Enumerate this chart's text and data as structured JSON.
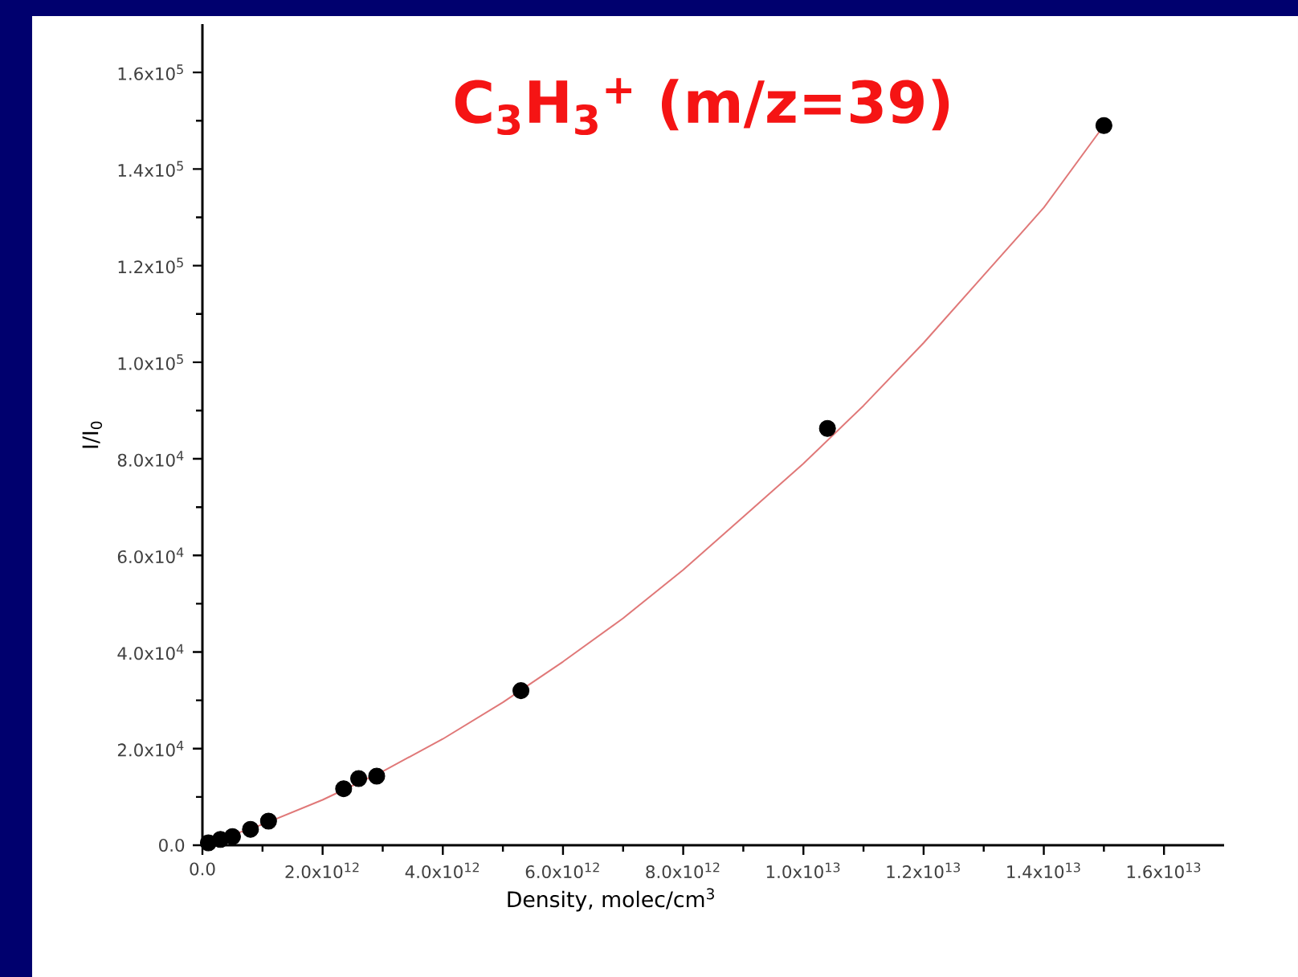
{
  "chart_data": {
    "type": "scatter",
    "title": "C$_{3}$H$_{3}$$^{+}$ (m/z=39)",
    "xlabel": "Density, molec/cm$^{3}$",
    "ylabel": "I/I$_{0}$",
    "xlim": [
      0,
      17000000000000.0
    ],
    "ylim": [
      0,
      170000
    ],
    "xticks": [
      {
        "value": 0,
        "label": "0.0"
      },
      {
        "value": 2000000000000.0,
        "label": "2.0x10$^{12}$"
      },
      {
        "value": 4000000000000.0,
        "label": "4.0x10$^{12}$"
      },
      {
        "value": 6000000000000.0,
        "label": "6.0x10$^{12}$"
      },
      {
        "value": 8000000000000.0,
        "label": "8.0x10$^{12}$"
      },
      {
        "value": 10000000000000.0,
        "label": "1.0x10$^{13}$"
      },
      {
        "value": 12000000000000.0,
        "label": "1.2x10$^{13}$"
      },
      {
        "value": 14000000000000.0,
        "label": "1.4x10$^{13}$"
      },
      {
        "value": 16000000000000.0,
        "label": "1.6x10$^{13}$"
      }
    ],
    "yticks": [
      {
        "value": 0,
        "label": "0.0"
      },
      {
        "value": 20000,
        "label": "2.0x10$^{4}$"
      },
      {
        "value": 40000,
        "label": "4.0x10$^{4}$"
      },
      {
        "value": 60000,
        "label": "6.0x10$^{4}$"
      },
      {
        "value": 80000,
        "label": "8.0x10$^{4}$"
      },
      {
        "value": 100000,
        "label": "1.0x10$^{5}$"
      },
      {
        "value": 120000,
        "label": "1.2x10$^{5}$"
      },
      {
        "value": 140000,
        "label": "1.4x10$^{5}$"
      },
      {
        "value": 160000,
        "label": "1.6x10$^{5}$"
      }
    ],
    "grid": false,
    "marker": "circle",
    "series": [
      {
        "color": "#000000",
        "x": [
          100000000000.0,
          300000000000.0,
          500000000000.0,
          800000000000.0,
          1100000000000.0,
          2350000000000.0,
          2600000000000.0,
          2900000000000.0,
          5300000000000.0,
          10400000000000.0,
          15000000000000.0
        ],
        "values": [
          500,
          1200,
          1800,
          3300,
          5000,
          11700,
          13800,
          14300,
          32000,
          86300,
          149000
        ]
      },
      {
        "type": "line",
        "color": "#e07878",
        "marker": "none",
        "x": [
          0,
          1000000000000.0,
          2000000000000.0,
          3000000000000.0,
          4000000000000.0,
          5000000000000.0,
          6000000000000.0,
          7000000000000.0,
          8000000000000.0,
          9000000000000.0,
          10000000000000.0,
          11000000000000.0,
          12000000000000.0,
          13000000000000.0,
          14000000000000.0,
          15000000000000.0
        ],
        "values": [
          0,
          4300,
          9400,
          15300,
          22000,
          29600,
          38000,
          47000,
          57000,
          68000,
          79000,
          91000,
          104000,
          118000,
          132000,
          149000
        ]
      }
    ]
  }
}
